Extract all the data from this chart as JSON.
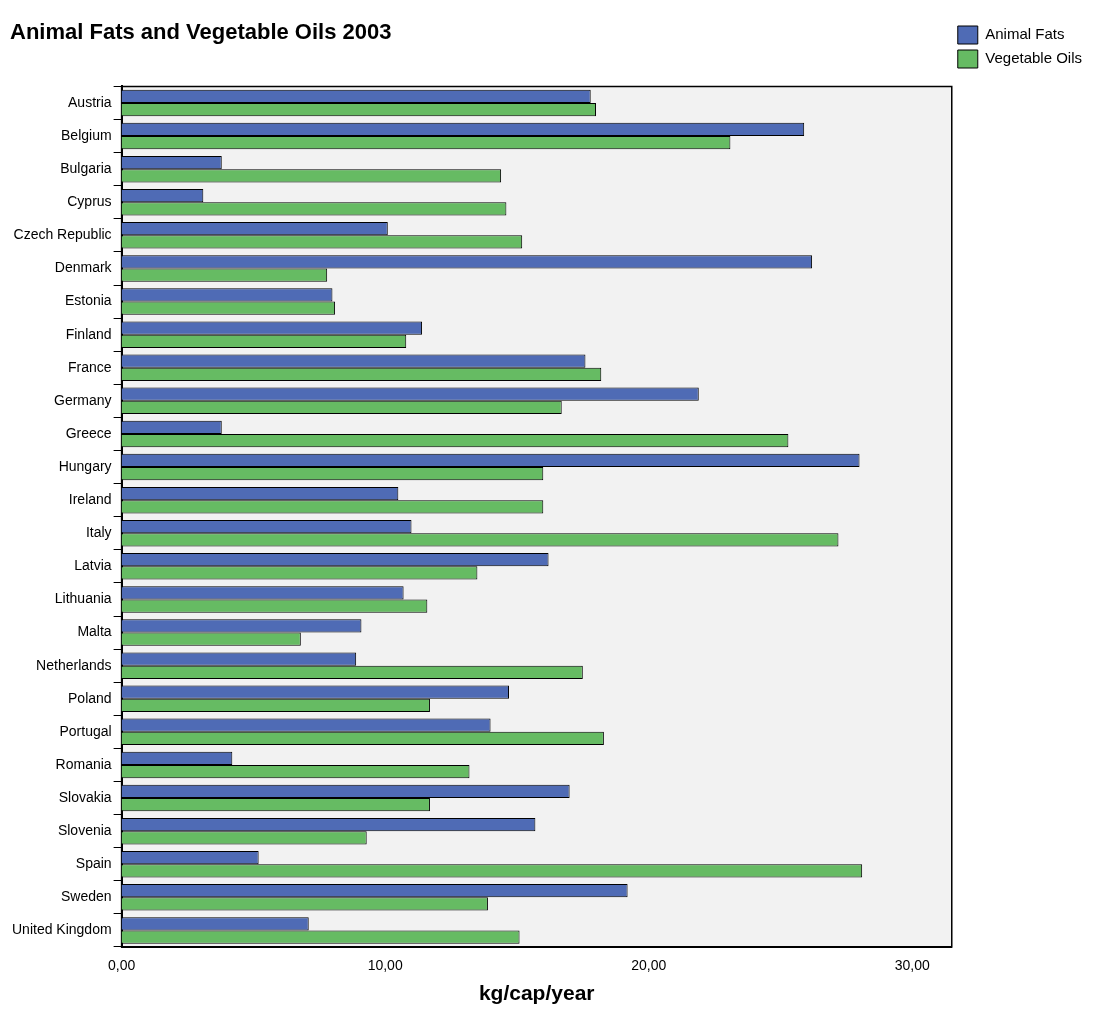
{
  "chart_data": {
    "type": "bar",
    "orientation": "horizontal",
    "title": "Animal Fats and Vegetable Oils 2003",
    "xlabel": "kg/cap/year",
    "categories": [
      "Austria",
      "Belgium",
      "Bulgaria",
      "Cyprus",
      "Czech Republic",
      "Denmark",
      "Estonia",
      "Finland",
      "France",
      "Germany",
      "Greece",
      "Hungary",
      "Ireland",
      "Italy",
      "Latvia",
      "Lithuania",
      "Malta",
      "Netherlands",
      "Poland",
      "Portugal",
      "Romania",
      "Slovakia",
      "Slovenia",
      "Spain",
      "Sweden",
      "United Kingdom"
    ],
    "series": [
      {
        "name": "Animal Fats",
        "color": "#4f6bb5",
        "values": [
          17.8,
          25.9,
          3.8,
          3.1,
          10.1,
          26.2,
          8.0,
          11.4,
          17.6,
          21.9,
          3.8,
          28.0,
          10.5,
          11.0,
          16.2,
          10.7,
          9.1,
          8.9,
          14.7,
          14.0,
          4.2,
          17.0,
          15.7,
          5.2,
          19.2,
          7.1
        ]
      },
      {
        "name": "Vegetable Oils",
        "color": "#66bb63",
        "values": [
          18.0,
          23.1,
          14.4,
          14.6,
          15.2,
          7.8,
          8.1,
          10.8,
          18.2,
          16.7,
          25.3,
          16.0,
          16.0,
          27.2,
          13.5,
          11.6,
          6.8,
          17.5,
          11.7,
          18.3,
          13.2,
          11.7,
          9.3,
          28.1,
          13.9,
          15.1
        ]
      }
    ],
    "xlim": [
      0,
      31.5
    ],
    "xticks": [
      {
        "value": 0,
        "label": "0,00"
      },
      {
        "value": 10,
        "label": "10,00"
      },
      {
        "value": 20,
        "label": "20,00"
      },
      {
        "value": 30,
        "label": "30,00"
      }
    ],
    "grid": false,
    "legend": "top right"
  }
}
